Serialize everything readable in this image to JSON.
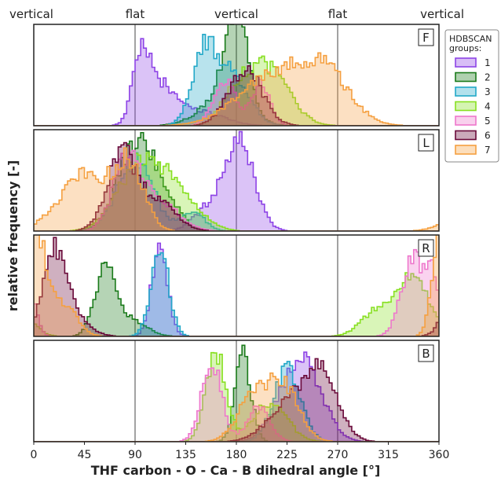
{
  "chart_data": {
    "type": "histogram",
    "xlabel": "THF carbon - O - Ca - B dihedral angle [°]",
    "ylabel": "relative frequency [-]",
    "xlim": [
      0,
      360
    ],
    "xticks": [
      "0",
      "45",
      "90",
      "135",
      "180",
      "225",
      "270",
      "315",
      "360"
    ],
    "top_labels": [
      {
        "x": 0,
        "text": "vertical"
      },
      {
        "x": 90,
        "text": "flat"
      },
      {
        "x": 180,
        "text": "vertical"
      },
      {
        "x": 270,
        "text": "flat"
      },
      {
        "x": 360,
        "text": "vertical"
      }
    ],
    "reference_lines": [
      90,
      180,
      270
    ],
    "legend": {
      "title": "HDBSCAN groups:",
      "placement": "right",
      "entries": [
        "1",
        "2",
        "3",
        "4",
        "5",
        "6",
        "7"
      ]
    },
    "colors": {
      "1": "#8e44e6",
      "2": "#1a7a1a",
      "3": "#22a8c8",
      "4": "#88e022",
      "5": "#ee77cc",
      "6": "#6a0a3a",
      "7": "#f5a040"
    },
    "panels": [
      {
        "label": "F",
        "ylim": [
          0,
          1
        ],
        "series": [
          {
            "name": "1",
            "peaks": [
              [
                95,
                0.66,
                7
              ],
              [
                112,
                0.42,
                14
              ],
              [
                150,
                0.14,
                20
              ]
            ]
          },
          {
            "name": "2",
            "peaks": [
              [
                180,
                1.0,
                10
              ],
              [
                168,
                0.28,
                20
              ]
            ]
          },
          {
            "name": "3",
            "peaks": [
              [
                152,
                0.78,
                11
              ],
              [
                178,
                0.5,
                14
              ]
            ]
          },
          {
            "name": "4",
            "peaks": [
              [
                205,
                0.62,
                20
              ],
              [
                178,
                0.2,
                12
              ]
            ]
          },
          {
            "name": "5",
            "peaks": [
              [
                170,
                0.48,
                10
              ],
              [
                202,
                0.42,
                8
              ]
            ]
          },
          {
            "name": "6",
            "peaks": [
              [
                188,
                0.58,
                15
              ]
            ]
          },
          {
            "name": "7",
            "peaks": [
              [
                215,
                0.54,
                32
              ],
              [
                260,
                0.44,
                22
              ]
            ]
          }
        ]
      },
      {
        "label": "L",
        "ylim": [
          0,
          1
        ],
        "series": [
          {
            "name": "1",
            "peaks": [
              [
                183,
                0.93,
                13
              ],
              [
                155,
                0.22,
                13
              ]
            ]
          },
          {
            "name": "2",
            "peaks": [
              [
                88,
                0.78,
                15
              ],
              [
                112,
                0.4,
                15
              ]
            ]
          },
          {
            "name": "3",
            "peaks": [
              [
                90,
                0.72,
                16
              ],
              [
                142,
                0.2,
                10
              ]
            ]
          },
          {
            "name": "4",
            "peaks": [
              [
                95,
                0.7,
                20
              ],
              [
                130,
                0.35,
                18
              ]
            ]
          },
          {
            "name": "5",
            "peaks": [
              [
                82,
                0.7,
                12
              ],
              [
                110,
                0.3,
                18
              ]
            ]
          },
          {
            "name": "6",
            "peaks": [
              [
                78,
                0.78,
                13
              ],
              [
                110,
                0.3,
                16
              ]
            ]
          },
          {
            "name": "7",
            "peaks": [
              [
                45,
                0.58,
                22
              ],
              [
                85,
                0.65,
                13
              ]
            ]
          }
        ]
      },
      {
        "label": "R",
        "ylim": [
          0,
          1
        ],
        "series": [
          {
            "name": "1",
            "peaks": [
              [
                112,
                0.95,
                7
              ]
            ]
          },
          {
            "name": "2",
            "peaks": [
              [
                63,
                0.66,
                9
              ],
              [
                85,
                0.18,
                14
              ]
            ]
          },
          {
            "name": "3",
            "peaks": [
              [
                112,
                0.9,
                8
              ]
            ]
          },
          {
            "name": "4",
            "peaks": [
              [
                337,
                0.62,
                14
              ],
              [
                305,
                0.25,
                14
              ]
            ]
          },
          {
            "name": "5",
            "peaks": [
              [
                337,
                0.82,
                10
              ],
              [
                355,
                0.55,
                6
              ]
            ]
          },
          {
            "name": "6",
            "peaks": [
              [
                18,
                0.72,
                10
              ],
              [
                30,
                0.25,
                15
              ]
            ]
          },
          {
            "name": "7",
            "peaks": [
              [
                5,
                0.78,
                7
              ],
              [
                25,
                0.35,
                12
              ],
              [
                358,
                0.5,
                6
              ]
            ]
          }
        ]
      },
      {
        "label": "B",
        "ylim": [
          0,
          1
        ],
        "series": [
          {
            "name": "1",
            "peaks": [
              [
                245,
                0.62,
                15
              ],
              [
                225,
                0.4,
                15
              ]
            ]
          },
          {
            "name": "2",
            "peaks": [
              [
                186,
                0.88,
                7
              ]
            ]
          },
          {
            "name": "3",
            "peaks": [
              [
                225,
                0.75,
                12
              ]
            ]
          },
          {
            "name": "4",
            "peaks": [
              [
                162,
                0.93,
                9
              ],
              [
                210,
                0.4,
                15
              ]
            ]
          },
          {
            "name": "5",
            "peaks": [
              [
                158,
                0.85,
                9
              ],
              [
                200,
                0.35,
                10
              ]
            ]
          },
          {
            "name": "6",
            "peaks": [
              [
                255,
                0.7,
                15
              ],
              [
                225,
                0.35,
                18
              ]
            ]
          },
          {
            "name": "7",
            "peaks": [
              [
                195,
                0.45,
                14
              ],
              [
                222,
                0.55,
                14
              ]
            ]
          }
        ]
      }
    ]
  }
}
